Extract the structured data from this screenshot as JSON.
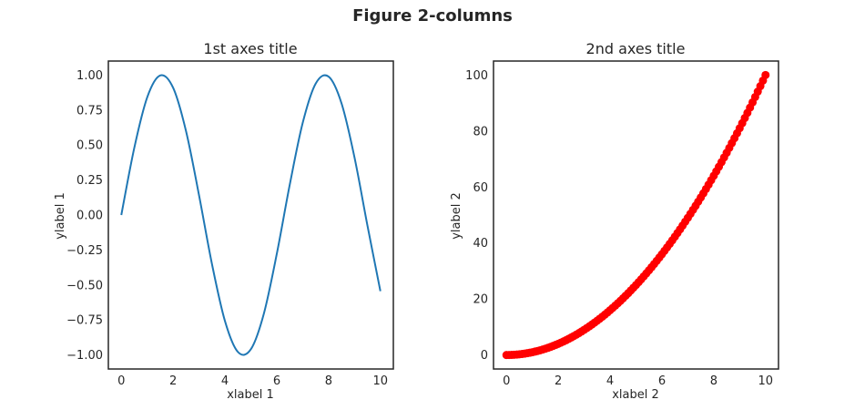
{
  "figure": {
    "title": "Figure 2-columns"
  },
  "colors": {
    "line": "#1f77b4",
    "scatter": "#ff0000",
    "axes": "#262626",
    "background": "#ffffff"
  },
  "chart_data": [
    {
      "type": "line",
      "title": "1st axes title",
      "xlabel": "xlabel 1",
      "ylabel": "ylabel 1",
      "xlim": [
        -0.5,
        10.5
      ],
      "ylim": [
        -1.1,
        1.1
      ],
      "xticks": [
        0,
        2,
        4,
        6,
        8,
        10
      ],
      "xtick_labels": [
        "0",
        "2",
        "4",
        "6",
        "8",
        "10"
      ],
      "yticks": [
        1.0,
        0.75,
        0.5,
        0.25,
        0.0,
        -0.25,
        -0.5,
        -0.75,
        -1.0
      ],
      "ytick_labels": [
        "1.00",
        "0.75",
        "0.50",
        "0.25",
        "0.00",
        "−0.25",
        "−0.50",
        "−0.75",
        "−1.00"
      ],
      "grid": false,
      "series": [
        {
          "x": [
            0,
            0.5,
            1,
            1.5,
            2,
            2.5,
            3,
            3.5,
            4,
            4.5,
            5,
            5.5,
            6,
            6.5,
            7,
            7.5,
            8,
            8.5,
            9,
            9.5,
            10
          ],
          "y": [
            0,
            0.479,
            0.841,
            0.997,
            0.909,
            0.598,
            0.141,
            -0.351,
            -0.757,
            -0.978,
            -0.959,
            -0.706,
            -0.279,
            0.215,
            0.657,
            0.938,
            0.989,
            0.798,
            0.412,
            -0.075,
            -0.544
          ]
        }
      ]
    },
    {
      "type": "scatter",
      "title": "2nd axes title",
      "xlabel": "xlabel 2",
      "ylabel": "ylabel 2",
      "xlim": [
        -0.5,
        10.5
      ],
      "ylim": [
        -5,
        105
      ],
      "xticks": [
        0,
        2,
        4,
        6,
        8,
        10
      ],
      "xtick_labels": [
        "0",
        "2",
        "4",
        "6",
        "8",
        "10"
      ],
      "yticks": [
        0,
        20,
        40,
        60,
        80,
        100
      ],
      "ytick_labels": [
        "0",
        "20",
        "40",
        "60",
        "80",
        "100"
      ],
      "grid": false,
      "series": [
        {
          "x": [
            0,
            0.5,
            1,
            1.5,
            2,
            2.5,
            3,
            3.5,
            4,
            4.5,
            5,
            5.5,
            6,
            6.5,
            7,
            7.5,
            8,
            8.5,
            9,
            9.5,
            10
          ],
          "y": [
            0,
            0.25,
            1,
            2.25,
            4,
            6.25,
            9,
            12.25,
            16,
            20.25,
            25,
            30.25,
            36,
            42.25,
            49,
            56.25,
            64,
            72.25,
            81,
            90.25,
            100
          ]
        }
      ]
    }
  ]
}
